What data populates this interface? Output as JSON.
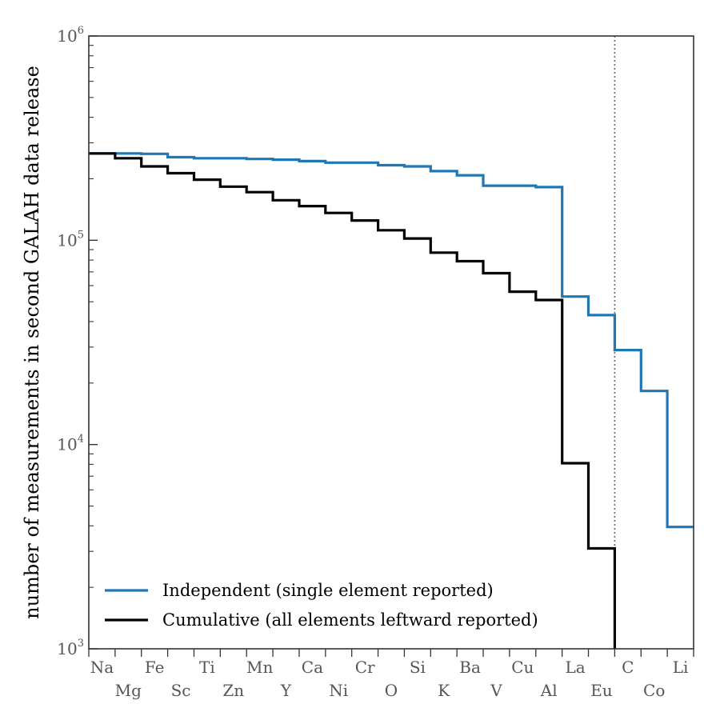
{
  "chart_data": {
    "type": "line",
    "step": true,
    "yscale": "log",
    "ylim": [
      1000,
      1000000
    ],
    "ylabel": "number of measurements in second GALAH data release",
    "y_ticks": [
      {
        "base": "10",
        "exp": "3",
        "value": 1000
      },
      {
        "base": "10",
        "exp": "4",
        "value": 10000
      },
      {
        "base": "10",
        "exp": "5",
        "value": 100000
      },
      {
        "base": "10",
        "exp": "6",
        "value": 1000000
      }
    ],
    "categories": [
      "Na",
      "Mg",
      "Fe",
      "Sc",
      "Ti",
      "Zn",
      "Mn",
      "Y",
      "Ca",
      "Ni",
      "Cr",
      "O",
      "Si",
      "K",
      "Ba",
      "V",
      "Cu",
      "Al",
      "La",
      "Eu",
      "C",
      "Co",
      "Li"
    ],
    "series": [
      {
        "name": "Independent (single element reported)",
        "color": "#1f77b4",
        "values": [
          266000,
          266000,
          265000,
          255000,
          252000,
          252000,
          250000,
          248000,
          244000,
          240000,
          240000,
          233000,
          230000,
          218000,
          208000,
          185000,
          185000,
          182000,
          53000,
          43000,
          29000,
          18300,
          3950
        ]
      },
      {
        "name": "Cumulative (all elements leftward reported)",
        "color": "#000000",
        "values": [
          266000,
          252000,
          230000,
          213000,
          198000,
          183000,
          172000,
          157000,
          147000,
          136000,
          125000,
          112000,
          102000,
          87000,
          79000,
          69000,
          56000,
          51000,
          8100,
          3100,
          null,
          null,
          null
        ]
      }
    ],
    "vline_after_category": "Eu",
    "grid": false,
    "legend": "lower-left"
  }
}
